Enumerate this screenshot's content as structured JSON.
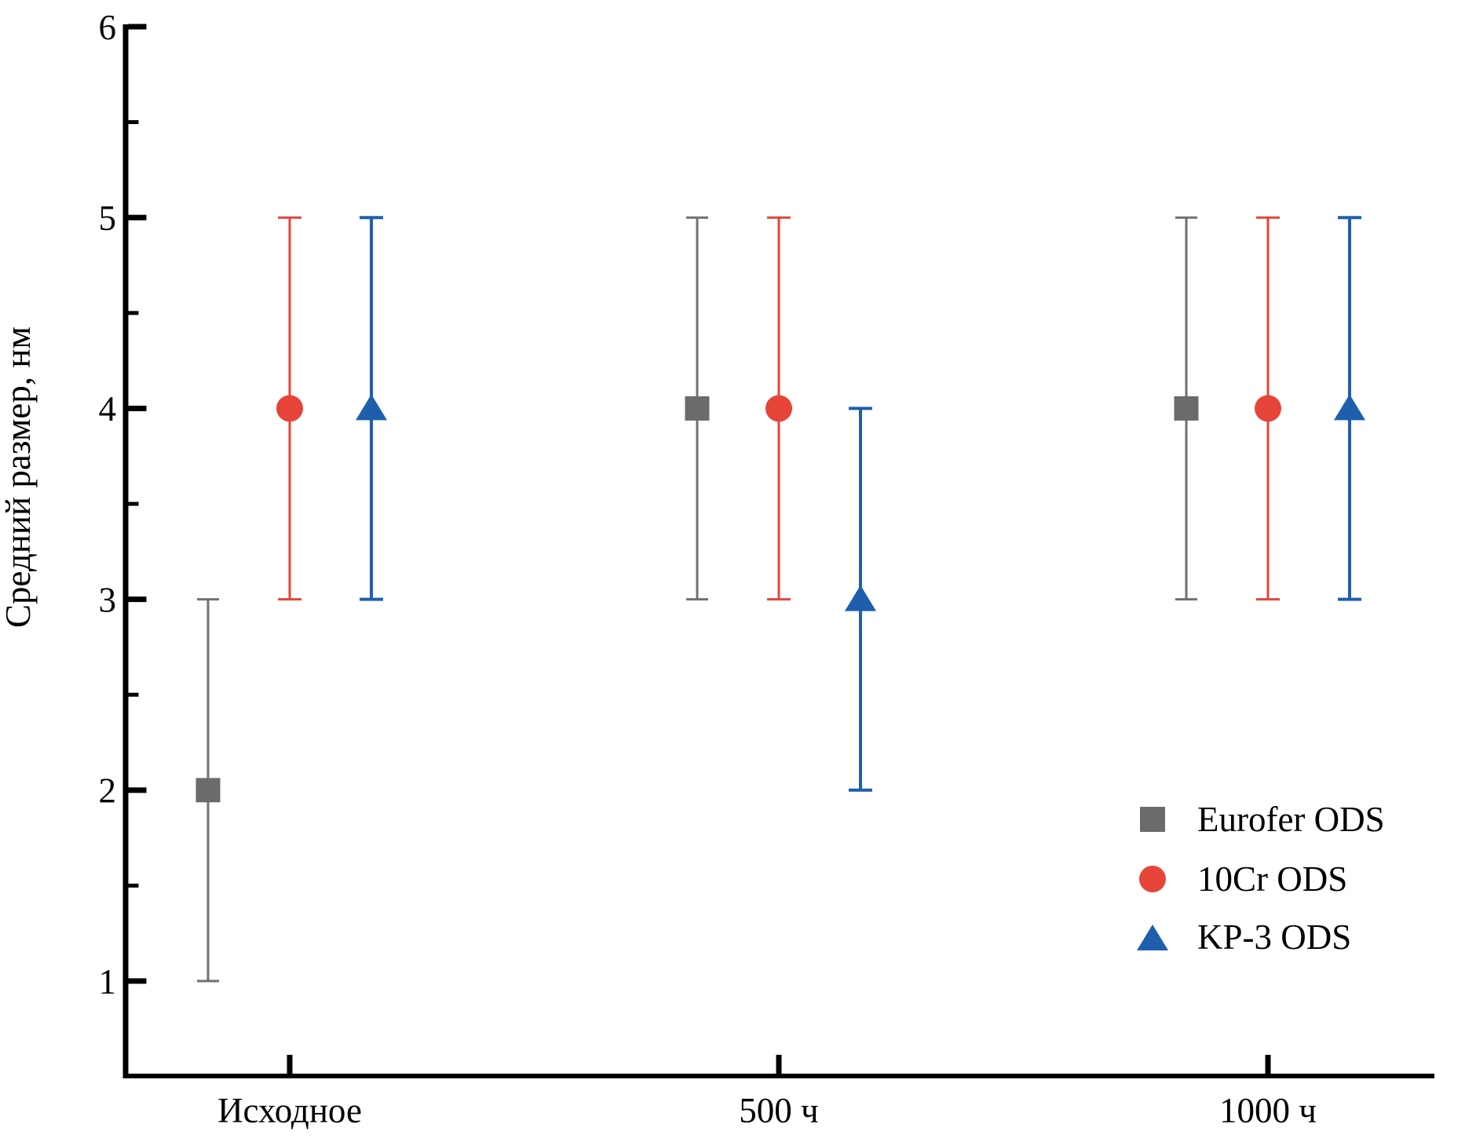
{
  "figure": {
    "background": "#ffffff",
    "text_color": "#000000",
    "axis_color": "#000000"
  },
  "chart_data": {
    "type": "scatter",
    "title": "",
    "xlabel": "",
    "ylabel": "Средний размер, нм",
    "categories": [
      "Исходное",
      "500 ч",
      "1000 ч"
    ],
    "series": [
      {
        "name": "Eurofer ODS",
        "marker": "square",
        "color": "#696b6c",
        "line_color": "#6e7072",
        "values": [
          2,
          4,
          4
        ],
        "error": 1
      },
      {
        "name": "10Cr ODS",
        "marker": "circle",
        "color": "#e64438",
        "line_color": "#e64438",
        "values": [
          4,
          4,
          4
        ],
        "error": 1
      },
      {
        "name": "KP-3 ODS",
        "marker": "triangle",
        "color": "#1e5fad",
        "line_color": "#1e5fad",
        "values": [
          4,
          3,
          4
        ],
        "error": 1
      }
    ],
    "points_with_errors": [
      {
        "series": "Eurofer ODS",
        "category": "Исходное",
        "y": 2,
        "y_low": 1,
        "y_high": 3
      },
      {
        "series": "Eurofer ODS",
        "category": "500 ч",
        "y": 4,
        "y_low": 3,
        "y_high": 5
      },
      {
        "series": "Eurofer ODS",
        "category": "1000 ч",
        "y": 4,
        "y_low": 3,
        "y_high": 5
      },
      {
        "series": "10Cr ODS",
        "category": "Исходное",
        "y": 4,
        "y_low": 3,
        "y_high": 5
      },
      {
        "series": "10Cr ODS",
        "category": "500 ч",
        "y": 4,
        "y_low": 3,
        "y_high": 5
      },
      {
        "series": "10Cr ODS",
        "category": "1000 ч",
        "y": 4,
        "y_low": 3,
        "y_high": 5
      },
      {
        "series": "KP-3 ODS",
        "category": "Исходное",
        "y": 4,
        "y_low": 3,
        "y_high": 5
      },
      {
        "series": "KP-3 ODS",
        "category": "500 ч",
        "y": 3,
        "y_low": 2,
        "y_high": 4
      },
      {
        "series": "KP-3 ODS",
        "category": "1000 ч",
        "y": 4,
        "y_low": 3,
        "y_high": 5
      }
    ],
    "ylim": [
      0.5,
      6
    ],
    "yticks": [
      1,
      2,
      3,
      4,
      5,
      6
    ],
    "yticks_minor": [
      1.5,
      2.5,
      3.5,
      4.5,
      5.5
    ],
    "grid": false,
    "legend_position": "lower-right"
  }
}
